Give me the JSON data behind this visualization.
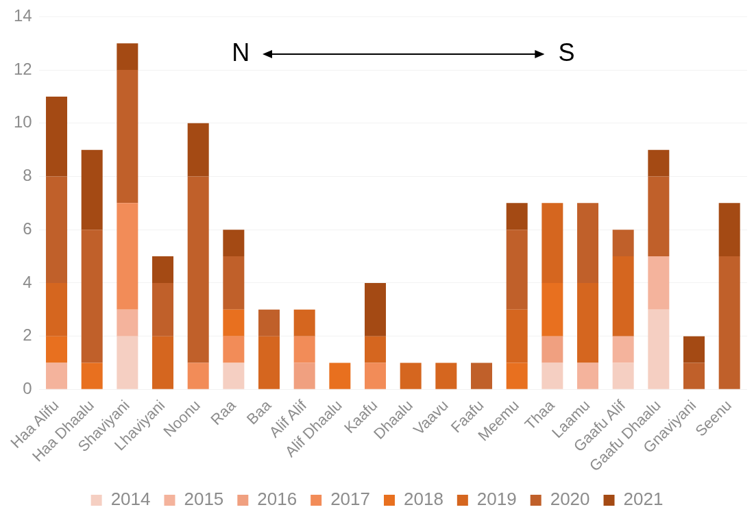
{
  "chart_data": {
    "type": "bar",
    "stacked": true,
    "categories": [
      "Haa Alifu",
      "Haa Dhaalu",
      "Shaviyani",
      "Lhaviyani",
      "Noonu",
      "Raa",
      "Baa",
      "Alif Alif",
      "Alif Dhaalu",
      "Kaafu",
      "Dhaalu",
      "Vaavu",
      "Faafu",
      "Meemu",
      "Thaa",
      "Laamu",
      "Gaafu Alif",
      "Gaafu Dhaalu",
      "Gnaviyani",
      "Seenu"
    ],
    "series": [
      {
        "name": "2014",
        "color": "#f5cfc2",
        "values": [
          0,
          0,
          2,
          0,
          0,
          1,
          0,
          0,
          0,
          0,
          0,
          0,
          0,
          0,
          1,
          0,
          1,
          3,
          0,
          0
        ]
      },
      {
        "name": "2015",
        "color": "#f4b39c",
        "values": [
          1,
          0,
          1,
          0,
          0,
          0,
          0,
          0,
          0,
          0,
          0,
          0,
          0,
          0,
          0,
          1,
          1,
          2,
          0,
          0
        ]
      },
      {
        "name": "2016",
        "color": "#f0a080",
        "values": [
          0,
          0,
          0,
          0,
          0,
          0,
          0,
          1,
          0,
          0,
          0,
          0,
          0,
          0,
          1,
          0,
          0,
          0,
          0,
          0
        ]
      },
      {
        "name": "2017",
        "color": "#f28c58",
        "values": [
          0,
          0,
          4,
          0,
          1,
          1,
          0,
          1,
          0,
          1,
          0,
          0,
          0,
          0,
          0,
          0,
          0,
          0,
          0,
          0
        ]
      },
      {
        "name": "2018",
        "color": "#e8701f",
        "values": [
          1,
          1,
          0,
          0,
          0,
          1,
          0,
          0,
          1,
          0,
          0,
          0,
          0,
          1,
          2,
          0,
          0,
          0,
          0,
          0
        ]
      },
      {
        "name": "2019",
        "color": "#d5661f",
        "values": [
          2,
          0,
          0,
          2,
          0,
          0,
          2,
          1,
          0,
          1,
          1,
          1,
          0,
          2,
          3,
          3,
          3,
          0,
          0,
          0
        ]
      },
      {
        "name": "2020",
        "color": "#c0602a",
        "values": [
          4,
          5,
          5,
          2,
          7,
          2,
          1,
          0,
          0,
          0,
          0,
          0,
          1,
          3,
          0,
          3,
          1,
          3,
          1,
          5
        ]
      },
      {
        "name": "2021",
        "color": "#a44a14",
        "values": [
          3,
          3,
          1,
          1,
          2,
          1,
          0,
          0,
          0,
          2,
          0,
          0,
          0,
          1,
          0,
          0,
          0,
          1,
          1,
          2
        ]
      }
    ],
    "ylim": [
      0,
      14
    ],
    "yticks": [
      0,
      2,
      4,
      6,
      8,
      10,
      12,
      14
    ],
    "grid": "y",
    "legend": "bottom",
    "annotations": [
      "N",
      "S"
    ]
  }
}
